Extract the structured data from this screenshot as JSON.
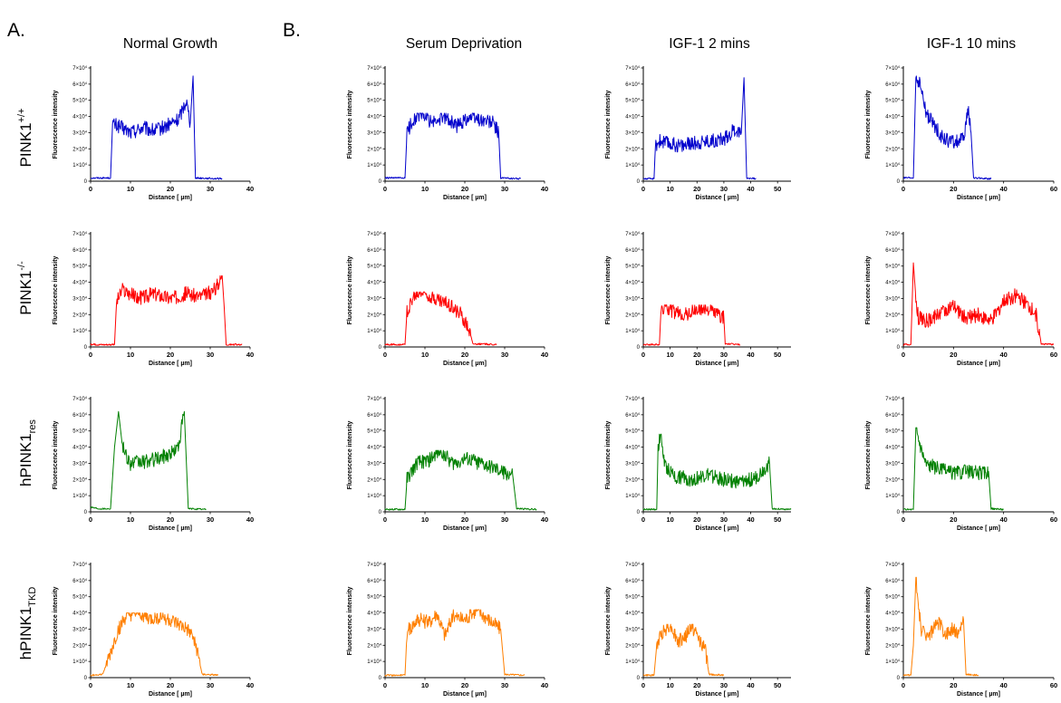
{
  "figure": {
    "panel_labels": [
      "A.",
      "B."
    ],
    "columns": [
      "Normal Growth",
      "Serum Deprivation",
      "IGF-1 2 mins",
      "IGF-1 10 mins"
    ],
    "rows": [
      {
        "base": "PINK1",
        "sup": "+/+",
        "sub": ""
      },
      {
        "base": "PINK1",
        "sup": "-/-",
        "sub": ""
      },
      {
        "base": "hPINK1",
        "sup": "",
        "sub": "res"
      },
      {
        "base": "hPINK1",
        "sup": "",
        "sub": "TKD"
      }
    ],
    "colors": {
      "PINK1+/+": "#0000cc",
      "PINK1-/-": "#ff0000",
      "hPINK1res": "#008000",
      "hPINK1TKD": "#ff7f00"
    }
  },
  "chart_data": {
    "type": "line",
    "xlabel": "Distance [ µm]",
    "ylabel": "Fluorescence intensity",
    "ylim": [
      0,
      70000
    ],
    "y_ticks": [
      "0",
      "1×10^4",
      "2×10^4",
      "3×10^4",
      "4×10^4",
      "5×10^4",
      "6×10^4",
      "7×10^4"
    ],
    "x_axes": [
      {
        "xlim": [
          0,
          40
        ],
        "ticks": [
          0,
          10,
          20,
          30,
          40
        ]
      },
      {
        "xlim": [
          0,
          40
        ],
        "ticks": [
          0,
          10,
          20,
          30,
          40
        ]
      },
      {
        "xlim": [
          0,
          55
        ],
        "ticks": [
          0,
          10,
          20,
          30,
          40,
          50
        ]
      },
      {
        "xlim": [
          0,
          60
        ],
        "ticks": [
          0,
          20,
          40,
          60
        ]
      }
    ],
    "panels": [
      {
        "row": 0,
        "col": 0,
        "series": "PINK1+/+",
        "points": [
          [
            0,
            2000
          ],
          [
            5,
            2000
          ],
          [
            5.5,
            35000
          ],
          [
            7,
            34000
          ],
          [
            10,
            30000
          ],
          [
            13,
            33000
          ],
          [
            16,
            31000
          ],
          [
            19,
            34000
          ],
          [
            22,
            38000
          ],
          [
            24,
            50000
          ],
          [
            25,
            36000
          ],
          [
            25.7,
            65000
          ],
          [
            26.3,
            2000
          ],
          [
            33,
            1500
          ]
        ]
      },
      {
        "row": 0,
        "col": 1,
        "series": "PINK1+/+",
        "points": [
          [
            0,
            2000
          ],
          [
            5,
            2000
          ],
          [
            5.5,
            30000
          ],
          [
            7,
            38000
          ],
          [
            9,
            42000
          ],
          [
            12,
            36000
          ],
          [
            15,
            40000
          ],
          [
            18,
            34000
          ],
          [
            21,
            40000
          ],
          [
            24,
            38000
          ],
          [
            27,
            36000
          ],
          [
            28.5,
            30000
          ],
          [
            29,
            2000
          ],
          [
            34,
            1500
          ]
        ]
      },
      {
        "row": 0,
        "col": 2,
        "series": "PINK1+/+",
        "points": [
          [
            0,
            1500
          ],
          [
            4,
            1500
          ],
          [
            4.5,
            22000
          ],
          [
            6,
            25000
          ],
          [
            10,
            23000
          ],
          [
            15,
            22000
          ],
          [
            20,
            24000
          ],
          [
            25,
            25000
          ],
          [
            30,
            26000
          ],
          [
            34,
            32000
          ],
          [
            36.5,
            30000
          ],
          [
            37.5,
            64000
          ],
          [
            38.5,
            2000
          ],
          [
            42,
            1500
          ]
        ]
      },
      {
        "row": 0,
        "col": 3,
        "series": "PINK1+/+",
        "points": [
          [
            0,
            2000
          ],
          [
            4,
            2000
          ],
          [
            5,
            65000
          ],
          [
            7,
            58000
          ],
          [
            9,
            42000
          ],
          [
            12,
            35000
          ],
          [
            16,
            26000
          ],
          [
            20,
            24000
          ],
          [
            24,
            26000
          ],
          [
            26,
            45000
          ],
          [
            27,
            30000
          ],
          [
            28,
            2000
          ],
          [
            35,
            1500
          ]
        ]
      },
      {
        "row": 1,
        "col": 0,
        "series": "PINK1-/-",
        "points": [
          [
            0,
            1500
          ],
          [
            6,
            1500
          ],
          [
            6.5,
            28000
          ],
          [
            8,
            35000
          ],
          [
            12,
            30000
          ],
          [
            16,
            33000
          ],
          [
            20,
            30000
          ],
          [
            24,
            33000
          ],
          [
            28,
            31000
          ],
          [
            31,
            35000
          ],
          [
            33,
            44000
          ],
          [
            33.5,
            25000
          ],
          [
            34,
            1500
          ],
          [
            38,
            1500
          ]
        ]
      },
      {
        "row": 1,
        "col": 1,
        "series": "PINK1-/-",
        "points": [
          [
            0,
            1500
          ],
          [
            5,
            1500
          ],
          [
            5.5,
            22000
          ],
          [
            7,
            30000
          ],
          [
            9,
            34000
          ],
          [
            11,
            32000
          ],
          [
            14,
            28000
          ],
          [
            17,
            25000
          ],
          [
            19,
            20000
          ],
          [
            21,
            12000
          ],
          [
            22,
            2000
          ],
          [
            28,
            1500
          ]
        ]
      },
      {
        "row": 1,
        "col": 2,
        "series": "PINK1-/-",
        "points": [
          [
            0,
            1500
          ],
          [
            6,
            1500
          ],
          [
            6.5,
            20000
          ],
          [
            8,
            26000
          ],
          [
            12,
            21000
          ],
          [
            16,
            20000
          ],
          [
            20,
            23000
          ],
          [
            24,
            24000
          ],
          [
            28,
            20000
          ],
          [
            30,
            18000
          ],
          [
            30.5,
            2000
          ],
          [
            36,
            1500
          ]
        ]
      },
      {
        "row": 1,
        "col": 3,
        "series": "PINK1-/-",
        "points": [
          [
            0,
            1500
          ],
          [
            3,
            1500
          ],
          [
            4,
            52000
          ],
          [
            5,
            30000
          ],
          [
            6,
            18000
          ],
          [
            10,
            16000
          ],
          [
            15,
            22000
          ],
          [
            20,
            25000
          ],
          [
            25,
            18000
          ],
          [
            30,
            20000
          ],
          [
            35,
            16000
          ],
          [
            40,
            28000
          ],
          [
            45,
            32000
          ],
          [
            50,
            25000
          ],
          [
            53,
            20000
          ],
          [
            55,
            2000
          ],
          [
            60,
            1500
          ]
        ]
      },
      {
        "row": 2,
        "col": 0,
        "series": "hPINK1res",
        "points": [
          [
            0,
            3000
          ],
          [
            2,
            2000
          ],
          [
            5,
            2000
          ],
          [
            6,
            40000
          ],
          [
            7,
            62000
          ],
          [
            8,
            40000
          ],
          [
            10,
            30000
          ],
          [
            14,
            31000
          ],
          [
            17,
            33000
          ],
          [
            20,
            36000
          ],
          [
            22,
            40000
          ],
          [
            23.5,
            62000
          ],
          [
            24.5,
            2000
          ],
          [
            29,
            1500
          ]
        ]
      },
      {
        "row": 2,
        "col": 1,
        "series": "hPINK1res",
        "points": [
          [
            0,
            1500
          ],
          [
            5,
            1500
          ],
          [
            5.5,
            20000
          ],
          [
            8,
            30000
          ],
          [
            11,
            32000
          ],
          [
            14,
            38000
          ],
          [
            17,
            30000
          ],
          [
            20,
            33000
          ],
          [
            24,
            30000
          ],
          [
            28,
            26000
          ],
          [
            32,
            23000
          ],
          [
            33,
            2000
          ],
          [
            38,
            1500
          ]
        ]
      },
      {
        "row": 2,
        "col": 2,
        "series": "hPINK1res",
        "points": [
          [
            0,
            1500
          ],
          [
            5,
            1500
          ],
          [
            5.5,
            40000
          ],
          [
            6.5,
            48000
          ],
          [
            8,
            28000
          ],
          [
            12,
            22000
          ],
          [
            18,
            20000
          ],
          [
            24,
            23000
          ],
          [
            30,
            20000
          ],
          [
            36,
            18000
          ],
          [
            42,
            21000
          ],
          [
            47,
            30000
          ],
          [
            48,
            2000
          ],
          [
            55,
            1500
          ]
        ]
      },
      {
        "row": 2,
        "col": 3,
        "series": "hPINK1res",
        "points": [
          [
            0,
            1500
          ],
          [
            4,
            1500
          ],
          [
            5,
            52000
          ],
          [
            7,
            40000
          ],
          [
            9,
            30000
          ],
          [
            15,
            26000
          ],
          [
            20,
            24000
          ],
          [
            26,
            25000
          ],
          [
            32,
            24000
          ],
          [
            34,
            25000
          ],
          [
            35,
            2000
          ],
          [
            40,
            1500
          ]
        ]
      },
      {
        "row": 3,
        "col": 0,
        "series": "hPINK1TKD",
        "points": [
          [
            0,
            1500
          ],
          [
            3,
            2000
          ],
          [
            5,
            15000
          ],
          [
            7,
            30000
          ],
          [
            9,
            38000
          ],
          [
            12,
            40000
          ],
          [
            15,
            36000
          ],
          [
            18,
            38000
          ],
          [
            21,
            34000
          ],
          [
            24,
            30000
          ],
          [
            26,
            24000
          ],
          [
            28,
            2000
          ],
          [
            32,
            1500
          ]
        ]
      },
      {
        "row": 3,
        "col": 1,
        "series": "hPINK1TKD",
        "points": [
          [
            0,
            1500
          ],
          [
            5,
            1500
          ],
          [
            5.5,
            28000
          ],
          [
            8,
            36000
          ],
          [
            11,
            34000
          ],
          [
            13,
            40000
          ],
          [
            15,
            26000
          ],
          [
            17,
            38000
          ],
          [
            20,
            36000
          ],
          [
            23,
            42000
          ],
          [
            26,
            36000
          ],
          [
            29,
            30000
          ],
          [
            30,
            2000
          ],
          [
            35,
            1500
          ]
        ]
      },
      {
        "row": 3,
        "col": 2,
        "series": "hPINK1TKD",
        "points": [
          [
            0,
            1500
          ],
          [
            4,
            1500
          ],
          [
            5,
            20000
          ],
          [
            7,
            28000
          ],
          [
            10,
            33000
          ],
          [
            13,
            22000
          ],
          [
            16,
            26000
          ],
          [
            18,
            32000
          ],
          [
            20,
            26000
          ],
          [
            23,
            18000
          ],
          [
            24.5,
            2000
          ],
          [
            30,
            1500
          ]
        ]
      },
      {
        "row": 3,
        "col": 3,
        "series": "hPINK1TKD",
        "points": [
          [
            0,
            1500
          ],
          [
            3,
            1500
          ],
          [
            4,
            20000
          ],
          [
            5,
            62000
          ],
          [
            7,
            30000
          ],
          [
            10,
            26000
          ],
          [
            14,
            34000
          ],
          [
            17,
            27000
          ],
          [
            20,
            30000
          ],
          [
            22,
            26000
          ],
          [
            24,
            36000
          ],
          [
            25,
            2000
          ],
          [
            30,
            1500
          ]
        ]
      }
    ]
  }
}
